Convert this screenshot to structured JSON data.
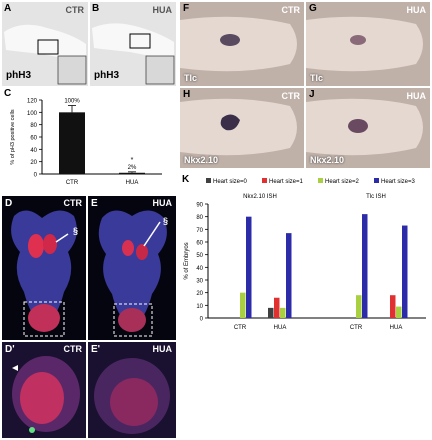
{
  "panels": {
    "A": {
      "letter": "A",
      "condition": "CTR",
      "stain": "phH3"
    },
    "B": {
      "letter": "B",
      "condition": "HUA",
      "stain": "phH3"
    },
    "C": {
      "letter": "C"
    },
    "D": {
      "letter": "D",
      "condition": "CTR",
      "marker": "§"
    },
    "E": {
      "letter": "E",
      "condition": "HUA",
      "marker": "§"
    },
    "D_prime": {
      "letter": "D'",
      "condition": "CTR"
    },
    "E_prime": {
      "letter": "E'",
      "condition": "HUA"
    },
    "F": {
      "letter": "F",
      "condition": "CTR",
      "stain": "Tlc"
    },
    "G": {
      "letter": "G",
      "condition": "HUA",
      "stain": "Tlc"
    },
    "H": {
      "letter": "H",
      "condition": "CTR",
      "stain": "Nkx2.10"
    },
    "J": {
      "letter": "J",
      "condition": "HUA",
      "stain": "Nkx2.10"
    },
    "K": {
      "letter": "K"
    }
  },
  "colors": {
    "heart0": "#404040",
    "heart1": "#e03030",
    "heart2": "#a8d040",
    "heart3": "#2c2ca8",
    "bar_c": "#111111"
  },
  "chart_data": [
    {
      "id": "C",
      "type": "bar",
      "categories": [
        "CTR",
        "HUA"
      ],
      "values": [
        100,
        2
      ],
      "data_labels": [
        "100%",
        "2%"
      ],
      "significance": [
        "",
        "*"
      ],
      "ylabel": "% of pH3 positive cells",
      "ylim": [
        0,
        120
      ],
      "yticks": [
        0,
        20,
        40,
        60,
        80,
        100,
        120
      ],
      "error_bars": [
        11,
        1.5
      ]
    },
    {
      "id": "K",
      "type": "bar",
      "legend": [
        "Heart size=0",
        "Heart size=1",
        "Heart size=2",
        "Heart size=3"
      ],
      "legend_placement": "top",
      "ylabel": "% of Embryos",
      "ylim": [
        0,
        90
      ],
      "yticks": [
        0,
        10,
        20,
        30,
        40,
        50,
        60,
        70,
        80,
        90
      ],
      "groups": [
        {
          "title": "Nkx2.10 ISH",
          "categories": [
            "CTR",
            "HUA"
          ],
          "values": [
            [
              0,
              0,
              20,
              80
            ],
            [
              8,
              16,
              8,
              67
            ]
          ]
        },
        {
          "title": "Tlc ISH",
          "categories": [
            "CTR",
            "HUA"
          ],
          "values": [
            [
              0,
              0,
              18,
              82
            ],
            [
              0,
              18,
              9,
              73
            ]
          ]
        }
      ]
    }
  ]
}
